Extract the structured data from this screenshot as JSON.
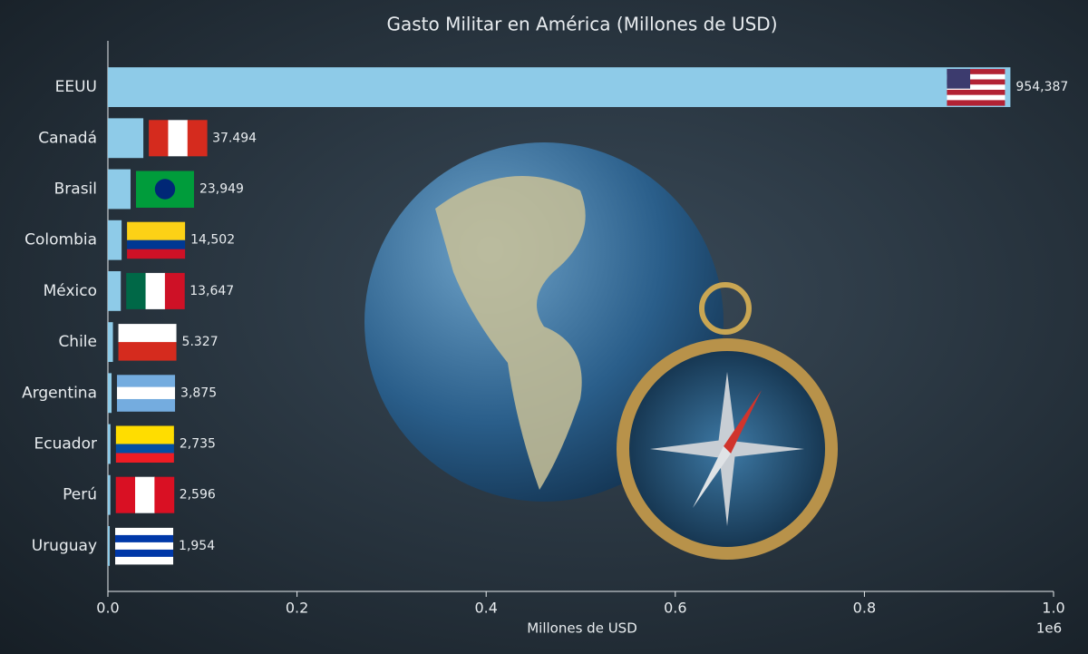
{
  "chart_data": {
    "type": "bar",
    "orientation": "horizontal",
    "title": "Gasto Militar en América (Millones de USD)",
    "x_label": "Millones de USD",
    "x_offset_label": "1e6",
    "categories": [
      "EEUU",
      "Canadá",
      "Brasil",
      "Colombia",
      "México",
      "Chile",
      "Argentina",
      "Ecuador",
      "Perú",
      "Uruguay"
    ],
    "values": [
      954387,
      37494,
      23949,
      14502,
      13647,
      5327,
      3875,
      2735,
      2596,
      1954
    ],
    "value_labels": [
      "954,387",
      "37.494",
      "23,949",
      "14,502",
      "13,647",
      "5.327",
      "3,875",
      "2,735",
      "2,596",
      "1,954"
    ],
    "color": "#8ecbe8",
    "xlim": [
      0,
      1000000
    ],
    "xticks": [
      {
        "value": 0,
        "label": "0.0"
      },
      {
        "value": 200000,
        "label": "0.2"
      },
      {
        "value": 400000,
        "label": "0.4"
      },
      {
        "value": 600000,
        "label": "0.6"
      },
      {
        "value": 800000,
        "label": "0.8"
      },
      {
        "value": 1000000,
        "label": "1.0"
      }
    ],
    "grid": false
  }
}
